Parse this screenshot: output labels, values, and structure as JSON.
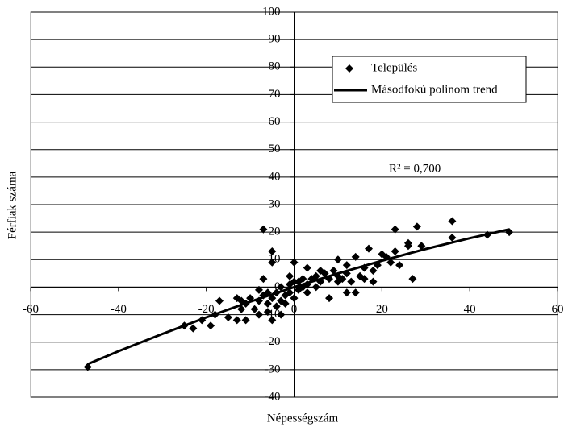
{
  "chart_data": {
    "type": "scatter",
    "x_label": "Népességszám",
    "y_label": "Férfiak száma",
    "annotation": "R² = 0,700",
    "xlim": [
      -60,
      60
    ],
    "ylim": [
      -40,
      100
    ],
    "xticks": [
      -60,
      -40,
      -20,
      0,
      20,
      40,
      60
    ],
    "yticks": [
      -40,
      -30,
      -20,
      -10,
      0,
      10,
      20,
      30,
      40,
      50,
      60,
      70,
      80,
      90,
      100
    ],
    "grid": true,
    "legend": "upper right",
    "series": [
      {
        "name": "Település",
        "type": "scatter",
        "color": "#000000",
        "x": [
          -47,
          -25,
          -23,
          -21,
          -19,
          -18,
          -17,
          -15,
          -13,
          -13,
          -12,
          -12,
          -11,
          -11,
          -10,
          -9,
          -8,
          -8,
          -8,
          -7,
          -7,
          -7,
          -6,
          -6,
          -6,
          -5,
          -5,
          -5,
          -5,
          -4,
          -4,
          -3,
          -3,
          -3,
          -2,
          -2,
          -1,
          -1,
          -1,
          0,
          0,
          0,
          1,
          1,
          2,
          2,
          3,
          3,
          3,
          4,
          5,
          5,
          6,
          6,
          7,
          8,
          8,
          9,
          10,
          10,
          10,
          11,
          12,
          12,
          12,
          13,
          14,
          14,
          15,
          16,
          16,
          17,
          18,
          18,
          19,
          20,
          21,
          22,
          23,
          23,
          24,
          26,
          26,
          27,
          28,
          29,
          36,
          36,
          44,
          49
        ],
        "values": [
          -29,
          -14,
          -15,
          -12,
          -14,
          -10,
          -5,
          -11,
          -12,
          -4,
          -8,
          -5,
          -12,
          -6,
          -4,
          -8,
          -1,
          -10,
          -5,
          21,
          3,
          -3,
          -9,
          -6,
          -2,
          13,
          9,
          -12,
          -4,
          -7,
          -2,
          -5,
          0,
          -10,
          -3,
          -6,
          1,
          -2,
          4,
          -4,
          9,
          2,
          -1,
          2,
          0,
          3,
          7,
          1,
          -2,
          3,
          0,
          4,
          6,
          2,
          5,
          -4,
          3,
          6,
          10,
          4,
          2,
          3,
          8,
          5,
          -2,
          2,
          11,
          -2,
          4,
          7,
          3,
          14,
          6,
          2,
          8,
          12,
          11,
          9,
          13,
          21,
          8,
          16,
          15,
          3,
          22,
          15,
          24,
          18,
          19,
          20
        ]
      },
      {
        "name": "Másodfokú polinom trend",
        "type": "line",
        "color": "#000000",
        "x": [
          -47,
          -40,
          -30,
          -20,
          -10,
          0,
          10,
          20,
          30,
          40,
          49
        ],
        "values": [
          -28,
          -23.3,
          -17,
          -11,
          -5.3,
          0,
          5,
          9.6,
          13.9,
          17.8,
          21
        ]
      }
    ]
  }
}
